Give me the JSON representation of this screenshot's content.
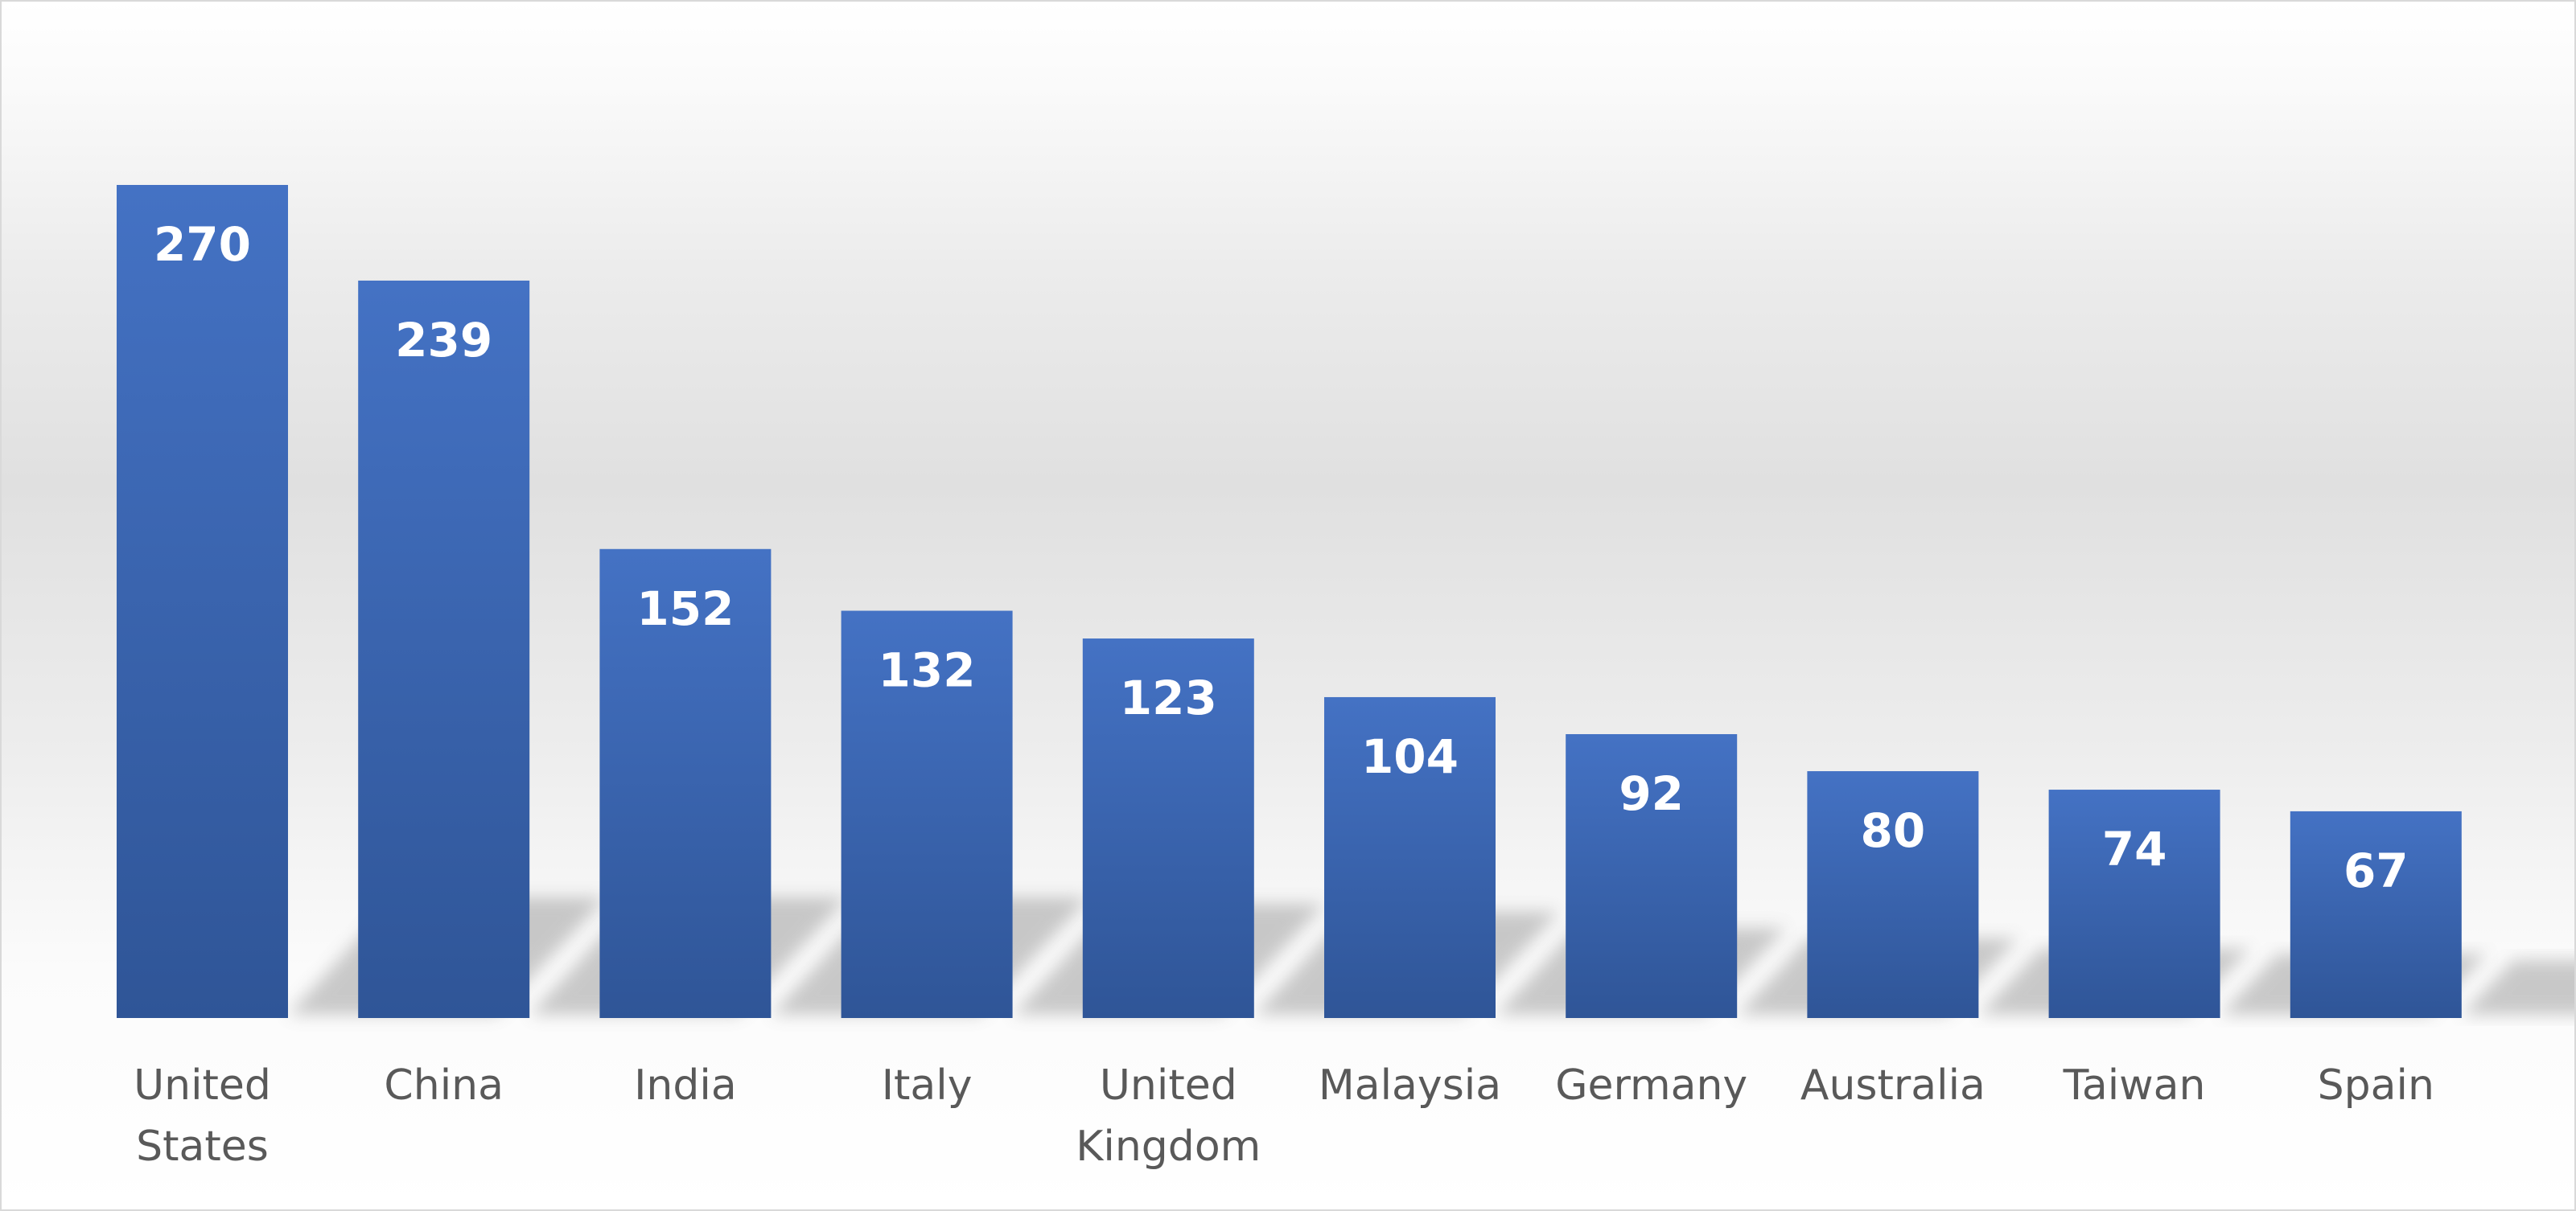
{
  "chart_data": {
    "type": "bar",
    "title": "",
    "xlabel": "",
    "ylabel": "",
    "categories": [
      "United States",
      "China",
      "India",
      "Italy",
      "United Kingdom",
      "Malaysia",
      "Germany",
      "Australia",
      "Taiwan",
      "Spain"
    ],
    "category_label_lines": [
      [
        "United",
        "States"
      ],
      [
        "China"
      ],
      [
        "India"
      ],
      [
        "Italy"
      ],
      [
        "United",
        "Kingdom"
      ],
      [
        "Malaysia"
      ],
      [
        "Germany"
      ],
      [
        "Australia"
      ],
      [
        "Taiwan"
      ],
      [
        "Spain"
      ]
    ],
    "values": [
      270,
      239,
      152,
      132,
      123,
      104,
      92,
      80,
      74,
      67
    ],
    "ylim": [
      0,
      270
    ],
    "grid": false,
    "legend": "none",
    "data_labels": "inside-end",
    "colors": {
      "bar_top": "#4472c4",
      "bar_bottom": "#2f5597",
      "data_label": "#ffffff",
      "category_label": "#595959",
      "background_band": "#e0e0e0",
      "frame_border": "#d9d9d9"
    }
  }
}
